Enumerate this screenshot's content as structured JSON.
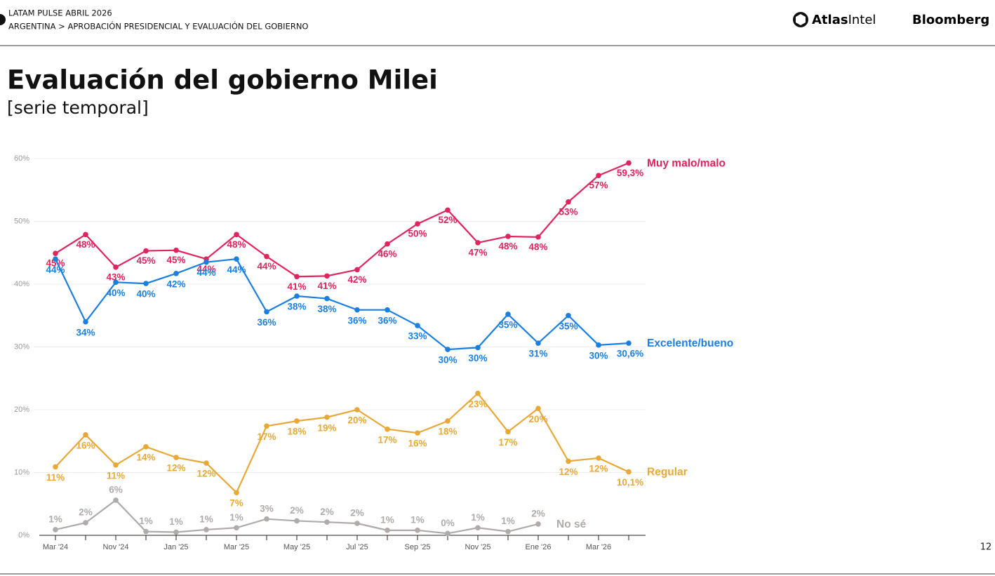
{
  "header": {
    "kicker": "LATAM PULSE ABRIL 2026",
    "breadcrumb": "ARGENTINA > APROBACIÓN PRESIDENCIAL Y EVALUACIÓN DEL GOBIERNO",
    "brand_bold": "Atlas",
    "brand_light": "Intel",
    "partner": "Bloomberg"
  },
  "page_number": "12",
  "chart_data": {
    "type": "line",
    "title": "Evaluación del gobierno Milei",
    "subtitle": "[serie temporal]",
    "categories": [
      "Mar '24",
      null,
      "Nov '24",
      null,
      "Jan '25",
      null,
      "Mar '25",
      null,
      "May '25",
      null,
      "Jul '25",
      null,
      "Sep '25",
      null,
      "Nov '25",
      null,
      "Ene '26",
      null,
      "Mar '26",
      null
    ],
    "ylim": [
      0,
      60
    ],
    "yticks": [
      {
        "value": 0,
        "label": "0%"
      },
      {
        "value": 10,
        "label": "10%"
      },
      {
        "value": 20,
        "label": "20%"
      },
      {
        "value": 30,
        "label": "30%"
      },
      {
        "value": 40,
        "label": "40%"
      },
      {
        "value": 50,
        "label": "50%"
      },
      {
        "value": 60,
        "label": "60%"
      }
    ],
    "grid": true,
    "series": [
      {
        "name": "Muy malo/malo",
        "color": "#e0245e",
        "values": [
          44.9,
          47.9,
          42.7,
          45.3,
          45.4,
          44.0,
          47.9,
          44.4,
          41.2,
          41.3,
          42.3,
          46.4,
          49.6,
          51.8,
          46.6,
          47.6,
          47.5,
          53.1,
          57.3,
          59.3
        ],
        "value_labels": [
          "45%",
          "48%",
          "43%",
          "45%",
          "45%",
          "44%",
          "48%",
          "44%",
          "41%",
          "41%",
          "42%",
          "46%",
          "50%",
          "52%",
          "47%",
          "48%",
          "48%",
          "53%",
          "57%",
          "59,3%"
        ]
      },
      {
        "name": "Excelente/bueno",
        "color": "#1a7fe0",
        "values": [
          44.0,
          34.0,
          40.3,
          40.1,
          41.7,
          43.5,
          44.0,
          35.6,
          38.1,
          37.7,
          35.9,
          35.9,
          33.4,
          29.6,
          29.9,
          35.2,
          30.6,
          35.0,
          30.3,
          30.6
        ],
        "value_labels": [
          "44%",
          "34%",
          "40%",
          "40%",
          "42%",
          "44%",
          "44%",
          "36%",
          "38%",
          "38%",
          "36%",
          "36%",
          "33%",
          "30%",
          "30%",
          "35%",
          "31%",
          "35%",
          "30%",
          "30,6%"
        ]
      },
      {
        "name": "Regular",
        "color": "#e8a838",
        "values": [
          10.9,
          16.0,
          11.2,
          14.1,
          12.4,
          11.5,
          6.8,
          17.4,
          18.2,
          18.8,
          20.0,
          16.9,
          16.3,
          18.2,
          22.6,
          16.5,
          20.2,
          11.8,
          12.3,
          10.1
        ],
        "value_labels": [
          "11%",
          "16%",
          "11%",
          "14%",
          "12%",
          "12%",
          "7%",
          "17%",
          "18%",
          "19%",
          "20%",
          "17%",
          "16%",
          "18%",
          "23%",
          "17%",
          "20%",
          "12%",
          "12%",
          "10,1%"
        ]
      },
      {
        "name": "No sé",
        "color": "#b0aaaa",
        "values": [
          0.9,
          2.0,
          5.6,
          0.6,
          0.5,
          0.9,
          1.2,
          2.6,
          2.3,
          2.1,
          1.9,
          0.8,
          0.8,
          0.3,
          1.2,
          0.6,
          1.8,
          null,
          null,
          null
        ],
        "value_labels": [
          "1%",
          "2%",
          "6%",
          "1%",
          "1%",
          "1%",
          "1%",
          "3%",
          "2%",
          "2%",
          "2%",
          "1%",
          "1%",
          "0%",
          "1%",
          "1%",
          "2%",
          null,
          null,
          null
        ]
      }
    ]
  }
}
